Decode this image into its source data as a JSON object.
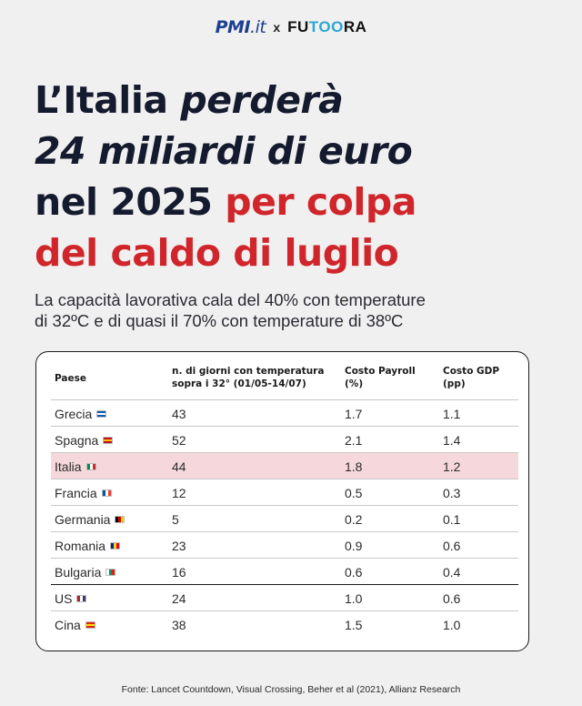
{
  "brand": {
    "left": "PMI",
    "left_suffix": ".it",
    "separator": "x",
    "right_a": "FU",
    "right_oo": "TOO",
    "right_b": "RA"
  },
  "headline": {
    "line1_a": "L’Italia ",
    "line1_b": "perderà",
    "line2": "24 miliardi di euro",
    "line3_a": "nel 2025 ",
    "line3_b": "per colpa",
    "line4": "del caldo di luglio"
  },
  "subtitle": {
    "line1": "La capacità lavorativa cala del 40% con temperature",
    "line2": "di 32ºC e di quasi il 70% con temperature di 38ºC"
  },
  "chart_data": {
    "type": "table",
    "columns": [
      "Paese",
      "n. di giorni con temperatura sopra i 32° (01/05-14/07)",
      "Costo Payroll (%)",
      "Costo GDP (pp)"
    ],
    "column_headers": {
      "paese": "Paese",
      "giorni_l1": "n. di giorni con temperatura",
      "giorni_l2": "sopra i 32° (01/05-14/07)",
      "payroll_l1": "Costo Payroll",
      "payroll_l2": "(%)",
      "gdp_l1": "Costo GDP",
      "gdp_l2": "(pp)"
    },
    "rows": [
      {
        "paese": "Grecia",
        "giorni": "43",
        "payroll": "1.7",
        "gdp": "1.1",
        "flag": [
          "#0d5eaf",
          "#ffffff"
        ]
      },
      {
        "paese": "Spagna",
        "giorni": "52",
        "payroll": "2.1",
        "gdp": "1.4",
        "flag": [
          "#c60b1e",
          "#ffc400"
        ]
      },
      {
        "paese": "Italia",
        "giorni": "44",
        "payroll": "1.8",
        "gdp": "1.2",
        "flag": [
          "#009246",
          "#ffffff",
          "#ce2b37"
        ],
        "highlight": true
      },
      {
        "paese": "Francia",
        "giorni": "12",
        "payroll": "0.5",
        "gdp": "0.3",
        "flag": [
          "#0055a4",
          "#ffffff",
          "#ef4135"
        ]
      },
      {
        "paese": "Germania",
        "giorni": "5",
        "payroll": "0.2",
        "gdp": "0.1",
        "flag": [
          "#000000",
          "#dd0000",
          "#ffce00"
        ]
      },
      {
        "paese": "Romania",
        "giorni": "23",
        "payroll": "0.9",
        "gdp": "0.6",
        "flag": [
          "#002b7f",
          "#fcd116",
          "#ce1126"
        ]
      },
      {
        "paese": "Bulgaria",
        "giorni": "16",
        "payroll": "0.6",
        "gdp": "0.4",
        "flag": [
          "#ffffff",
          "#00966e",
          "#d62612"
        ]
      },
      {
        "paese": "US",
        "giorni": "24",
        "payroll": "1.0",
        "gdp": "0.6",
        "flag": [
          "#b22234",
          "#ffffff",
          "#3c3b6e"
        ],
        "separator_above": true
      },
      {
        "paese": "Cina",
        "giorni": "38",
        "payroll": "1.5",
        "gdp": "1.0",
        "flag": [
          "#de2910",
          "#ffde00"
        ]
      }
    ],
    "highlight_color": "#f6d8dc"
  },
  "footer": "Fonte: Lancet Countdown, Visual Crossing, Beher et al (2021), Allianz Research",
  "colors": {
    "accent_red": "#d0262b",
    "headline_dark": "#151b2e",
    "brand_blue": "#1c3f8f",
    "brand_cyan": "#2aa6d6"
  }
}
